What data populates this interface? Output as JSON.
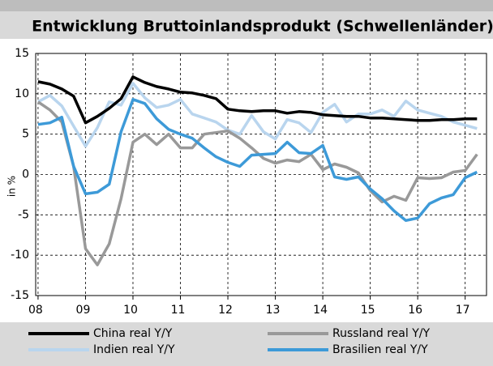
{
  "chart_data": {
    "type": "line",
    "title": "Entwicklung Bruttoinlandsprodukt (Schwellenländer)",
    "y_label": "in %",
    "x": [
      2008.0,
      2008.25,
      2008.5,
      2008.75,
      2009.0,
      2009.25,
      2009.5,
      2009.75,
      2010.0,
      2010.25,
      2010.5,
      2010.75,
      2011.0,
      2011.25,
      2011.5,
      2011.75,
      2012.0,
      2012.25,
      2012.5,
      2012.75,
      2013.0,
      2013.25,
      2013.5,
      2013.75,
      2014.0,
      2014.25,
      2014.5,
      2014.75,
      2015.0,
      2015.25,
      2015.5,
      2015.75,
      2016.0,
      2016.25,
      2016.5,
      2016.75,
      2017.0,
      2017.25
    ],
    "series": [
      {
        "name": "China real Y/Y",
        "color": "#000000",
        "values": [
          11.5,
          11.2,
          10.6,
          9.7,
          6.4,
          7.2,
          8.2,
          9.4,
          12.1,
          11.4,
          10.9,
          10.6,
          10.2,
          10.1,
          9.8,
          9.4,
          8.1,
          7.9,
          7.8,
          7.9,
          7.9,
          7.6,
          7.8,
          7.7,
          7.4,
          7.3,
          7.2,
          7.2,
          7.0,
          7.0,
          6.9,
          6.8,
          6.7,
          6.7,
          6.8,
          6.8,
          6.9,
          6.9
        ]
      },
      {
        "name": "Indien real Y/Y",
        "color": "#b9d5ee",
        "values": [
          9.0,
          9.8,
          8.5,
          6.0,
          3.5,
          5.8,
          9.0,
          8.6,
          11.3,
          9.5,
          8.3,
          8.6,
          9.3,
          7.5,
          7.0,
          6.5,
          5.5,
          5.0,
          7.3,
          5.3,
          4.4,
          6.8,
          6.4,
          5.2,
          7.7,
          8.7,
          6.5,
          7.5,
          7.5,
          8.0,
          7.2,
          9.1,
          8.0,
          7.6,
          7.2,
          6.5,
          6.1,
          5.7
        ]
      },
      {
        "name": "Russland real Y/Y",
        "color": "#999999",
        "values": [
          9.0,
          8.0,
          6.5,
          1.0,
          -9.2,
          -11.2,
          -8.6,
          -3.0,
          4.0,
          5.0,
          3.7,
          5.0,
          3.3,
          3.3,
          5.0,
          5.2,
          5.4,
          4.5,
          3.3,
          2.0,
          1.4,
          1.8,
          1.6,
          2.5,
          0.6,
          1.3,
          0.9,
          0.2,
          -2.0,
          -3.4,
          -2.7,
          -3.2,
          -0.4,
          -0.5,
          -0.4,
          0.3,
          0.5,
          2.5
        ]
      },
      {
        "name": "Brasilien real Y/Y",
        "color": "#3d9ad8",
        "values": [
          6.2,
          6.4,
          7.1,
          1.0,
          -2.4,
          -2.2,
          -1.2,
          5.3,
          9.3,
          8.8,
          6.9,
          5.6,
          5.0,
          4.5,
          3.3,
          2.2,
          1.5,
          1.0,
          2.4,
          2.5,
          2.6,
          4.0,
          2.7,
          2.6,
          3.6,
          -0.3,
          -0.6,
          -0.3,
          -1.8,
          -3.0,
          -4.5,
          -5.7,
          -5.4,
          -3.6,
          -2.9,
          -2.5,
          -0.4,
          0.3
        ]
      }
    ],
    "xlim": [
      2007.95,
      2017.45
    ],
    "xticks": [
      {
        "value": 2008,
        "label": "08"
      },
      {
        "value": 2009,
        "label": "09"
      },
      {
        "value": 2010,
        "label": "10"
      },
      {
        "value": 2011,
        "label": "11"
      },
      {
        "value": 2012,
        "label": "12"
      },
      {
        "value": 2013,
        "label": "13"
      },
      {
        "value": 2014,
        "label": "14"
      },
      {
        "value": 2015,
        "label": "15"
      },
      {
        "value": 2016,
        "label": "16"
      },
      {
        "value": 2017,
        "label": "17"
      }
    ],
    "ylim": [
      -15,
      15
    ],
    "yticks": [
      -15,
      -10,
      -5,
      0,
      5,
      10,
      15
    ],
    "grid": true
  }
}
